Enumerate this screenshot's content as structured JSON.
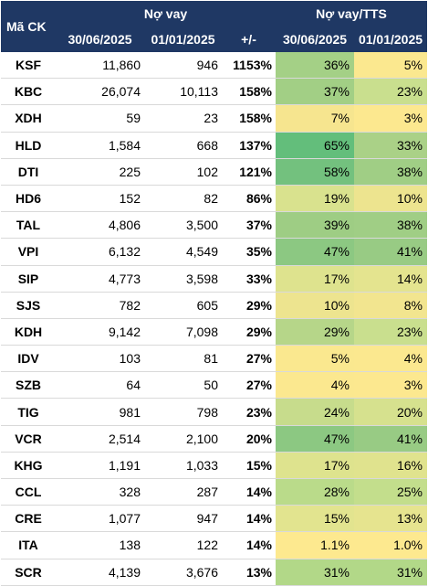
{
  "header": {
    "code": "Mã CK",
    "group_debt": "Nợ vay",
    "group_ratio": "Nợ vay/TTS",
    "date_1": "30/06/2025",
    "date_2": "01/01/2025",
    "change": "+/-",
    "date_3": "30/06/2025",
    "date_4": "01/01/2025"
  },
  "rows": [
    {
      "code": "KSF",
      "debt_h1": "11,860",
      "debt_start": "946",
      "change": "1153%",
      "ratio_h1": "36%",
      "ratio_start": "5%",
      "color_h1": "#a4d086",
      "color_start": "#fbe88f"
    },
    {
      "code": "KBC",
      "debt_h1": "26,074",
      "debt_start": "10,113",
      "change": "158%",
      "ratio_h1": "37%",
      "ratio_start": "23%",
      "color_h1": "#a2cf85",
      "color_start": "#c9df8e"
    },
    {
      "code": "XDH",
      "debt_h1": "59",
      "debt_start": "23",
      "change": "158%",
      "ratio_h1": "7%",
      "ratio_start": "3%",
      "color_h1": "#f6e58f",
      "color_start": "#fce88f"
    },
    {
      "code": "HLD",
      "debt_h1": "1,584",
      "debt_start": "668",
      "change": "137%",
      "ratio_h1": "65%",
      "ratio_start": "33%",
      "color_h1": "#63be7b",
      "color_start": "#aad187"
    },
    {
      "code": "DTI",
      "debt_h1": "225",
      "debt_start": "102",
      "change": "121%",
      "ratio_h1": "58%",
      "ratio_start": "38%",
      "color_h1": "#73c17e",
      "color_start": "#a0ce85"
    },
    {
      "code": "HD6",
      "debt_h1": "152",
      "debt_start": "82",
      "change": "86%",
      "ratio_h1": "19%",
      "ratio_start": "10%",
      "color_h1": "#d9e28e",
      "color_start": "#ede48f"
    },
    {
      "code": "TAL",
      "debt_h1": "4,806",
      "debt_start": "3,500",
      "change": "37%",
      "ratio_h1": "39%",
      "ratio_start": "38%",
      "color_h1": "#9ecd84",
      "color_start": "#a0ce85"
    },
    {
      "code": "VPI",
      "debt_h1": "6,132",
      "debt_start": "4,549",
      "change": "35%",
      "ratio_h1": "47%",
      "ratio_start": "41%",
      "color_h1": "#8cc882",
      "color_start": "#98cb84"
    },
    {
      "code": "SIP",
      "debt_h1": "4,773",
      "debt_start": "3,598",
      "change": "33%",
      "ratio_h1": "17%",
      "ratio_start": "14%",
      "color_h1": "#dee38e",
      "color_start": "#e4e48f"
    },
    {
      "code": "SJS",
      "debt_h1": "782",
      "debt_start": "605",
      "change": "29%",
      "ratio_h1": "10%",
      "ratio_start": "8%",
      "color_h1": "#ede48f",
      "color_start": "#f2e58f"
    },
    {
      "code": "KDH",
      "debt_h1": "9,142",
      "debt_start": "7,098",
      "change": "29%",
      "ratio_h1": "29%",
      "ratio_start": "23%",
      "color_h1": "#b6d689",
      "color_start": "#c9df8e"
    },
    {
      "code": "IDV",
      "debt_h1": "103",
      "debt_start": "81",
      "change": "27%",
      "ratio_h1": "5%",
      "ratio_start": "4%",
      "color_h1": "#fae88f",
      "color_start": "#fbe88f"
    },
    {
      "code": "SZB",
      "debt_h1": "64",
      "debt_start": "50",
      "change": "27%",
      "ratio_h1": "4%",
      "ratio_start": "3%",
      "color_h1": "#fbe88f",
      "color_start": "#fce88f"
    },
    {
      "code": "TIG",
      "debt_h1": "981",
      "debt_start": "798",
      "change": "23%",
      "ratio_h1": "24%",
      "ratio_start": "20%",
      "color_h1": "#c7dc8c",
      "color_start": "#d6e18e"
    },
    {
      "code": "VCR",
      "debt_h1": "2,514",
      "debt_start": "2,100",
      "change": "20%",
      "ratio_h1": "47%",
      "ratio_start": "41%",
      "color_h1": "#8cc882",
      "color_start": "#98cb84"
    },
    {
      "code": "KHG",
      "debt_h1": "1,191",
      "debt_start": "1,033",
      "change": "15%",
      "ratio_h1": "17%",
      "ratio_start": "16%",
      "color_h1": "#dee38e",
      "color_start": "#e0e38e"
    },
    {
      "code": "CCL",
      "debt_h1": "328",
      "debt_start": "287",
      "change": "14%",
      "ratio_h1": "28%",
      "ratio_start": "25%",
      "color_h1": "#badb8a",
      "color_start": "#c3de8c"
    },
    {
      "code": "CRE",
      "debt_h1": "1,077",
      "debt_start": "947",
      "change": "14%",
      "ratio_h1": "15%",
      "ratio_start": "13%",
      "color_h1": "#e2e48f",
      "color_start": "#e6e48f"
    },
    {
      "code": "ITA",
      "debt_h1": "138",
      "debt_start": "122",
      "change": "14%",
      "ratio_h1": "1.1%",
      "ratio_start": "1.0%",
      "color_h1": "#fde98f",
      "color_start": "#fde98f"
    },
    {
      "code": "SCR",
      "debt_h1": "4,139",
      "debt_start": "3,676",
      "change": "13%",
      "ratio_h1": "31%",
      "ratio_start": "31%",
      "color_h1": "#b2d888",
      "color_start": "#b2d888"
    }
  ]
}
